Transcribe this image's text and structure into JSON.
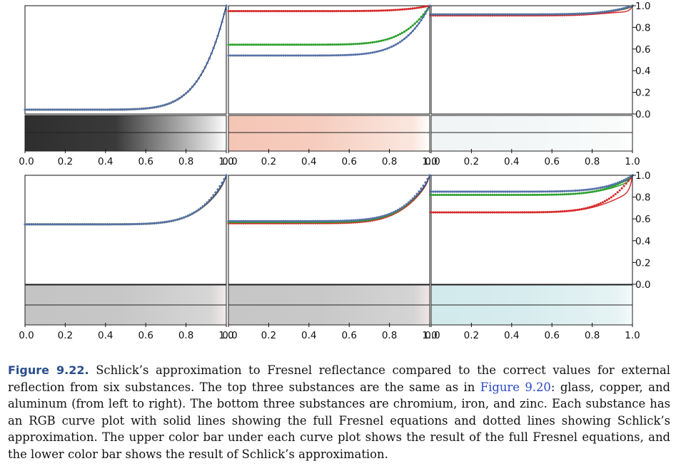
{
  "chart_data": {
    "type": "line",
    "layout": "3x2 grid",
    "x_ticks": [
      "0.0",
      "0.2",
      "0.4",
      "0.6",
      "0.8",
      "1.0"
    ],
    "y_ticks": [
      "0.0",
      "0.2",
      "0.4",
      "0.6",
      "0.8",
      "1.0"
    ],
    "xlim": [
      0,
      1
    ],
    "ylim": [
      0,
      1
    ],
    "y_axis_position": "right",
    "grid": false,
    "line_style": {
      "fresnel": "solid",
      "schlick": "dotted"
    },
    "colors": {
      "red": "#d62728",
      "green": "#2ca02c",
      "blue": "#1f3a93",
      "dots": "#5570a8"
    },
    "panels": [
      {
        "row": 0,
        "col": 0,
        "substance": "glass",
        "f0": {
          "r": 0.04,
          "g": 0.04,
          "b": 0.04
        },
        "dip": {
          "r": 0.0,
          "g": 0.0,
          "b": 0.0
        },
        "bars": {
          "fresnel": [
            "#2e2e2e",
            "#3a3a3a",
            "#dcdcdc",
            "#ffffff"
          ],
          "schlick": [
            "#2e2e2e",
            "#3a3a3a",
            "#dcdcdc",
            "#ffffff"
          ]
        }
      },
      {
        "row": 0,
        "col": 1,
        "substance": "copper",
        "f0": {
          "r": 0.95,
          "g": 0.64,
          "b": 0.54
        },
        "dip": {
          "r": 0.0,
          "g": 0.0,
          "b": 0.0
        },
        "bars": {
          "fresnel": [
            "#f4c6b6",
            "#f6cdbf",
            "#fbe7df",
            "#ffffff"
          ],
          "schlick": [
            "#f4c6b6",
            "#f6cdbf",
            "#fbe7df",
            "#ffffff"
          ]
        }
      },
      {
        "row": 0,
        "col": 2,
        "substance": "aluminum",
        "f0": {
          "r": 0.91,
          "g": 0.92,
          "b": 0.92
        },
        "dip": {
          "r": 0.06,
          "g": 0.02,
          "b": 0.01
        },
        "bars": {
          "fresnel": [
            "#f1f4f5",
            "#f3f6f7",
            "#f9fbfb",
            "#ffffff"
          ],
          "schlick": [
            "#f1f4f5",
            "#f3f6f7",
            "#f9fbfb",
            "#ffffff"
          ]
        }
      },
      {
        "row": 1,
        "col": 0,
        "substance": "chromium",
        "f0": {
          "r": 0.55,
          "g": 0.55,
          "b": 0.55
        },
        "dip": {
          "r": 0.05,
          "g": 0.04,
          "b": 0.03
        },
        "bars": {
          "fresnel": [
            "#c4c4c4",
            "#c6c6c6",
            "#d6d6d6",
            "#f4eaea"
          ],
          "schlick": [
            "#c4c4c4",
            "#c6c6c6",
            "#d6d6d6",
            "#f4eaea"
          ]
        }
      },
      {
        "row": 1,
        "col": 1,
        "substance": "iron",
        "f0": {
          "r": 0.56,
          "g": 0.57,
          "b": 0.58
        },
        "dip": {
          "r": 0.05,
          "g": 0.04,
          "b": 0.04
        },
        "bars": {
          "fresnel": [
            "#c6c6c6",
            "#c8c8c8",
            "#d4d4d4",
            "#f2e6e6"
          ],
          "schlick": [
            "#c6c6c6",
            "#c8c8c8",
            "#d4d4d4",
            "#f2e6e6"
          ]
        }
      },
      {
        "row": 1,
        "col": 2,
        "substance": "zinc",
        "f0": {
          "r": 0.66,
          "g": 0.82,
          "b": 0.85
        },
        "dip": {
          "r": 0.16,
          "g": 0.05,
          "b": 0.03
        },
        "bars": {
          "fresnel": [
            "#d2eaec",
            "#d6ecee",
            "#e6f3f4",
            "#f4fafa"
          ],
          "schlick": [
            "#d2eaec",
            "#d6ecee",
            "#e6f3f4",
            "#f4fafa"
          ]
        }
      }
    ]
  },
  "caption": {
    "label": "Figure 9.22.",
    "text_before_ref": " Schlick’s approximation to Fresnel reflectance compared to the correct values for external reflection from six substances. The top three substances are the same as in ",
    "ref": "Figure 9.20",
    "text_after_ref": ": glass, copper, and aluminum (from left to right). The bottom three substances are chromium, iron, and zinc. Each substance has an RGB curve plot with solid lines showing the full Fresnel equations and dotted lines showing Schlick’s approximation. The upper color bar under each curve plot shows the result of the full Fresnel equations, and the lower color bar shows the result of Schlick’s approximation."
  }
}
